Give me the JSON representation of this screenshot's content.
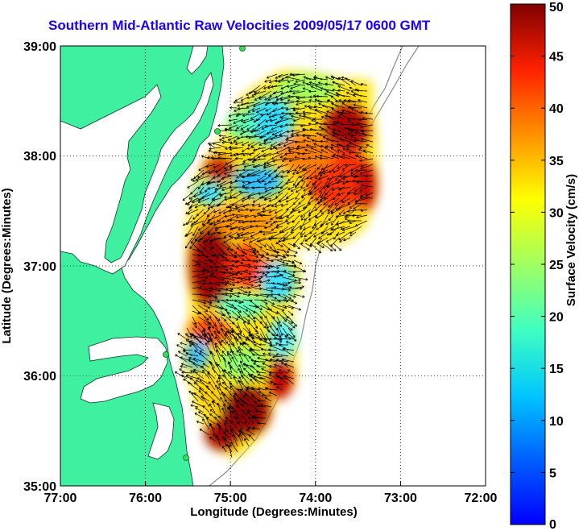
{
  "title": "Southern Mid-Atlantic Raw Velocities 2009/05/17 0600 GMT",
  "x_axis": {
    "label": "Longitude (Degrees:Minutes)",
    "ticks": [
      "77:00",
      "76:00",
      "75:00",
      "74:00",
      "73:00",
      "72:00"
    ]
  },
  "y_axis": {
    "label": "Latitude (Degrees:Minutes)",
    "ticks": [
      "39:00",
      "38:00",
      "37:00",
      "36:00",
      "35:00"
    ]
  },
  "colorbar": {
    "label": "Surface Velocity (cm/s)",
    "ticks": [
      "50",
      "45",
      "40",
      "35",
      "30",
      "25",
      "20",
      "15",
      "10",
      "5",
      "0"
    ],
    "range": [
      0,
      50
    ],
    "colormap": "jet"
  },
  "colors": {
    "land": "#3ff0a0",
    "title": "#1f00ff",
    "station_marker": "#2ee05a"
  },
  "map": {
    "lon_range": [
      -77,
      -72
    ],
    "lat_range": [
      35,
      39
    ],
    "grid": "dotted",
    "stations": "green circles along the coast"
  }
}
